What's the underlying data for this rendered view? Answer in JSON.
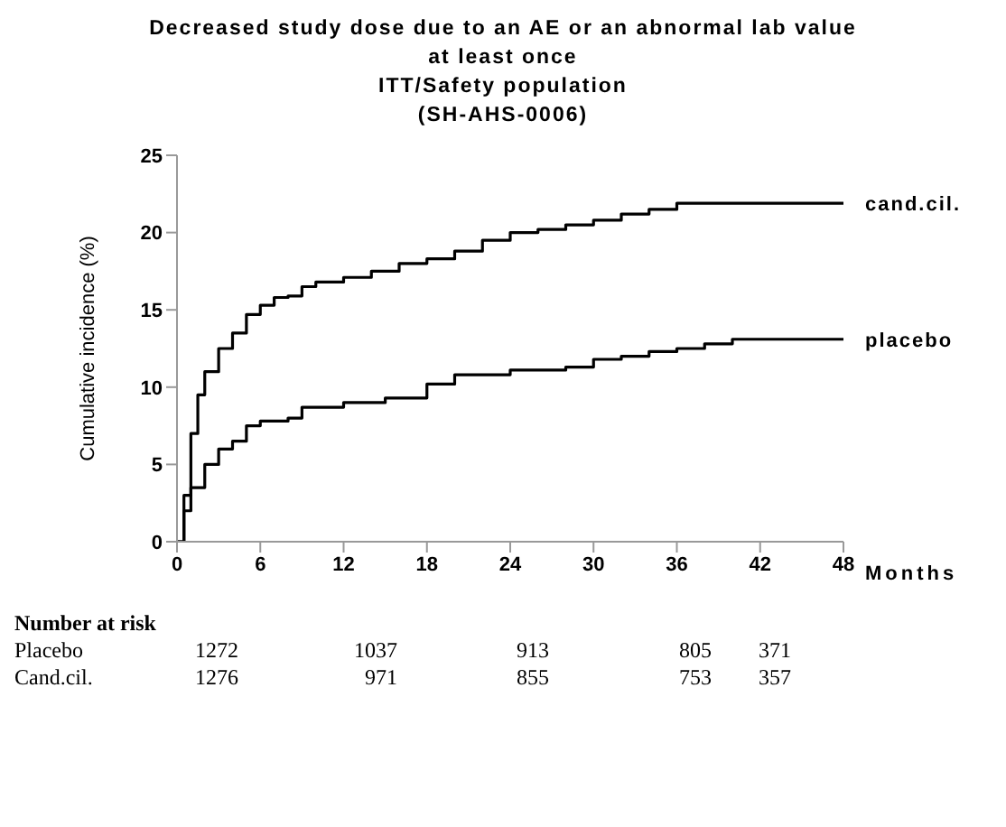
{
  "chart_data": {
    "type": "step",
    "title": "Decreased study dose due to an AE or an abnormal lab value at least once",
    "subtitle": "ITT/Safety population\n(SH-AHS-0006)",
    "xlabel": "Months",
    "ylabel": "Cumulative incidence (%)",
    "xlim": [
      0,
      48
    ],
    "xticks": [
      0,
      6,
      12,
      18,
      24,
      30,
      36,
      42,
      48
    ],
    "ylim": [
      0,
      25
    ],
    "yticks": [
      0,
      5,
      10,
      15,
      20,
      25
    ],
    "marker": "none",
    "line_style": "solid",
    "series": [
      {
        "name": "cand.cil.",
        "color": "#000000",
        "x": [
          0,
          0.5,
          1,
          1.5,
          2,
          3,
          4,
          5,
          6,
          7,
          8,
          9,
          10,
          12,
          14,
          16,
          18,
          20,
          22,
          24,
          26,
          28,
          30,
          32,
          34,
          36,
          48
        ],
        "values": [
          0,
          3,
          7,
          9.5,
          11,
          12.5,
          13.5,
          14.7,
          15.3,
          15.8,
          15.9,
          16.5,
          16.8,
          17.1,
          17.5,
          18,
          18.3,
          18.8,
          19.5,
          20,
          20.2,
          20.5,
          20.8,
          21.2,
          21.5,
          21.9,
          21.9
        ]
      },
      {
        "name": "placebo",
        "color": "#000000",
        "x": [
          0,
          0.5,
          1,
          2,
          3,
          4,
          5,
          6,
          8,
          9,
          12,
          15,
          18,
          20,
          24,
          28,
          30,
          32,
          34,
          36,
          38,
          40,
          48
        ],
        "values": [
          0,
          2,
          3.5,
          5,
          6,
          6.5,
          7.5,
          7.8,
          8,
          8.7,
          9,
          9.3,
          10.2,
          10.8,
          11.1,
          11.3,
          11.8,
          12,
          12.3,
          12.5,
          12.8,
          13.1,
          13.1
        ]
      }
    ],
    "annotations": [
      "Number at risk",
      "Placebo 1272 1037 913 805 371",
      "Cand.cil. 1276 971 855 753 357"
    ]
  }
}
